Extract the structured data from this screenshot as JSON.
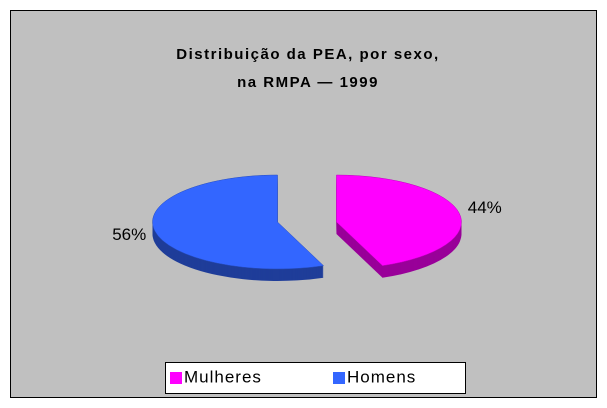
{
  "chart_data": {
    "type": "pie3d",
    "title": [
      "Distribuição da PEA, por sexo,",
      "na RMPA — 1999"
    ],
    "categories": [
      "Mulheres",
      "Homens"
    ],
    "values": [
      44,
      56
    ],
    "value_labels": [
      "44%",
      "56%"
    ],
    "colors": [
      "#ff00ff",
      "#3366ff"
    ],
    "legend": "bottom"
  }
}
